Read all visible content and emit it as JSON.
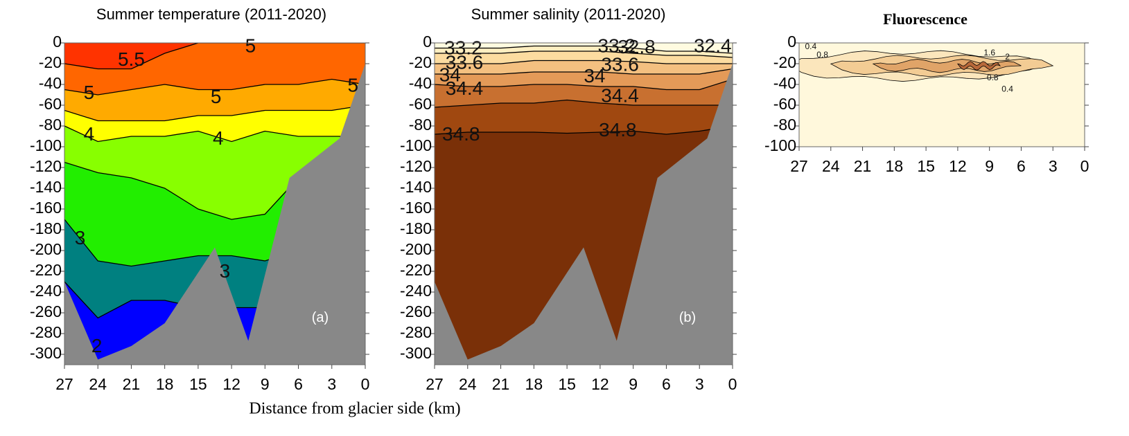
{
  "chart_data": [
    {
      "type": "contour",
      "title": "Summer temperature (2011-2020)",
      "panel_label": "(a)",
      "xlabel": "Distance from glacier side (km)",
      "xlim": [
        27,
        0
      ],
      "xticks": [
        27,
        24,
        21,
        18,
        15,
        12,
        9,
        6,
        3,
        0
      ],
      "ylim": [
        -310,
        0
      ],
      "yticks": [
        0,
        -20,
        -40,
        -60,
        -80,
        -100,
        -120,
        -140,
        -160,
        -180,
        -200,
        -220,
        -240,
        -260,
        -280,
        -300
      ],
      "levels": [
        5.5,
        5,
        4.5,
        4,
        3.5,
        3,
        2.5
      ],
      "colors": [
        "#ff3300",
        "#ff6600",
        "#ffaa00",
        "#ffff00",
        "#88ff00",
        "#22ee00",
        "#008080",
        "#0000ff"
      ],
      "annotations": [
        "5.5",
        "5",
        "5",
        "5",
        "5",
        "4",
        "4",
        "3",
        "3",
        "2"
      ]
    },
    {
      "type": "contour",
      "title": "Summer salinity (2011-2020)",
      "panel_label": "(b)",
      "xlim": [
        27,
        0
      ],
      "xticks": [
        27,
        24,
        21,
        18,
        15,
        12,
        9,
        6,
        3,
        0
      ],
      "ylim": [
        -310,
        0
      ],
      "yticks": [
        0,
        -20,
        -40,
        -60,
        -80,
        -100,
        -120,
        -140,
        -160,
        -180,
        -200,
        -220,
        -240,
        -260,
        -280,
        -300
      ],
      "levels": [
        32.4,
        32.8,
        33.2,
        33.6,
        34,
        34.4,
        34.8
      ],
      "colors": [
        "#fffbe0",
        "#feeec0",
        "#fcdca0",
        "#f4c080",
        "#e49a58",
        "#c87030",
        "#a04810",
        "#7a3008"
      ],
      "annotations": [
        "33.2",
        "33.6",
        "34",
        "34.4",
        "34.8",
        "33.2",
        "32.8",
        "33.6",
        "34",
        "34.4",
        "34.8",
        "32.4"
      ]
    },
    {
      "type": "lens",
      "title": "Fluorescence",
      "xlim": [
        27,
        0
      ],
      "xticks": [
        27,
        24,
        21,
        18,
        15,
        12,
        9,
        6,
        3,
        0
      ],
      "ylim": [
        -100,
        0
      ],
      "yticks": [
        0,
        -20,
        -40,
        -60,
        -80,
        -100
      ],
      "levels": [
        0.4,
        0.8,
        1.6,
        2
      ],
      "colors": [
        "#fff8dc",
        "#fbe6bc",
        "#f3cc94",
        "#e0a468",
        "#b8683a"
      ],
      "annotations": [
        "0.4",
        "0.8",
        "1.6",
        "2",
        "0.8",
        "0.4"
      ]
    }
  ]
}
